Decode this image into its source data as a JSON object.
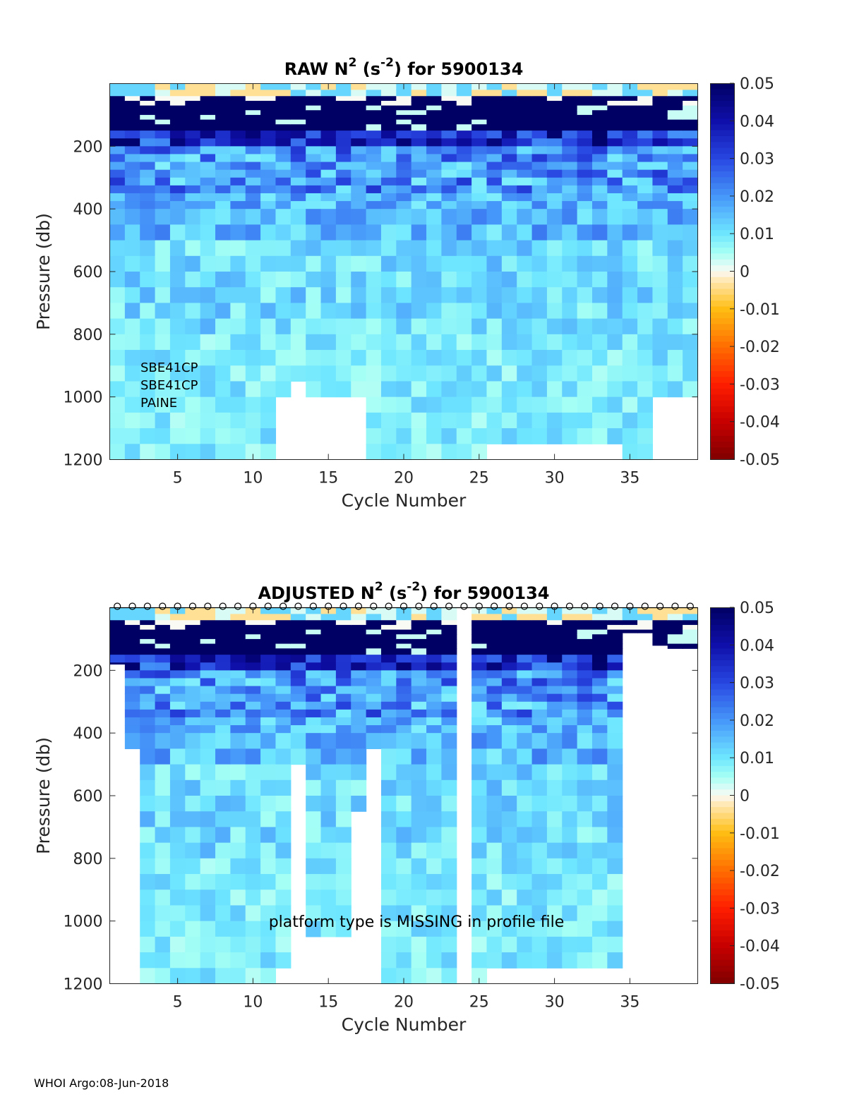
{
  "footer": "WHOI Argo:08-Jun-2018",
  "chart_data": [
    {
      "type": "heatmap",
      "title": "RAW N2 (s-2) for 5900134",
      "title_main": "RAW N",
      "title_sup1": "2",
      "title_mid": " (s",
      "title_sup2": "-2",
      "title_end": ") for 5900134",
      "xlabel": "Cycle Number",
      "ylabel": "Pressure (db)",
      "xlim": [
        1,
        39
      ],
      "ylim": [
        1200,
        0
      ],
      "xticks": [
        5,
        10,
        15,
        20,
        25,
        30,
        35
      ],
      "yticks": [
        200,
        400,
        600,
        800,
        1000,
        1200
      ],
      "clim": [
        -0.05,
        0.05
      ],
      "colorbar_ticks": [
        "0.05",
        "0.04",
        "0.03",
        "0.02",
        "0.01",
        "0",
        "-0.01",
        "-0.02",
        "-0.03",
        "-0.04",
        "-0.05"
      ],
      "annotations": [
        "SBE41CP",
        "SBE41CP",
        "PAINE"
      ],
      "data_note": "N2 values mostly 0.005–0.02 below 200 db; strongly positive (>0.05) in upper 50–150 db; near-zero patches at surface",
      "max_depth_per_cycle": [
        1200,
        1200,
        1200,
        1200,
        1200,
        1200,
        1200,
        1200,
        1200,
        1200,
        1200,
        1000,
        950,
        1000,
        1000,
        1000,
        1000,
        1200,
        1200,
        1200,
        1200,
        1200,
        1200,
        1200,
        1200,
        1150,
        1150,
        1150,
        1150,
        1150,
        1150,
        1150,
        1150,
        1150,
        1200,
        1200,
        1000,
        1000,
        1000
      ]
    },
    {
      "type": "heatmap",
      "title": "ADJUSTED N2 (s-2) for 5900134",
      "title_main": "ADJUSTED N",
      "title_sup1": "2",
      "title_mid": " (s",
      "title_sup2": "-2",
      "title_end": ") for 5900134",
      "xlabel": "Cycle Number",
      "ylabel": "Pressure (db)",
      "xlim": [
        1,
        39
      ],
      "ylim": [
        1200,
        0
      ],
      "xticks": [
        5,
        10,
        15,
        20,
        25,
        30,
        35
      ],
      "yticks": [
        200,
        400,
        600,
        800,
        1000,
        1200
      ],
      "clim": [
        -0.05,
        0.05
      ],
      "colorbar_ticks": [
        "0.05",
        "0.04",
        "0.03",
        "0.02",
        "0.01",
        "0",
        "-0.01",
        "-0.02",
        "-0.03",
        "-0.04",
        "-0.05"
      ],
      "annotations": [
        "platform type is MISSING in profile file"
      ],
      "marker": "o",
      "marker_cycles": [
        1,
        2,
        3,
        4,
        5,
        6,
        7,
        8,
        9,
        10,
        11,
        12,
        13,
        14,
        15,
        16,
        17,
        18,
        19,
        20,
        21,
        22,
        23,
        24,
        25,
        26,
        27,
        28,
        29,
        30,
        31,
        32,
        33,
        34,
        35,
        36,
        37,
        38,
        39
      ],
      "max_depth_per_cycle": [
        180,
        450,
        1200,
        1200,
        1200,
        1200,
        1200,
        1200,
        1200,
        1200,
        1200,
        1150,
        500,
        1050,
        1050,
        1050,
        650,
        450,
        1200,
        1200,
        1200,
        1200,
        1200,
        0,
        1200,
        1150,
        1150,
        1150,
        1150,
        1150,
        1150,
        1150,
        1150,
        1150,
        80,
        80,
        120,
        130,
        130
      ]
    }
  ],
  "colors": {
    "background": "#ffffff",
    "axis": "#262626"
  }
}
